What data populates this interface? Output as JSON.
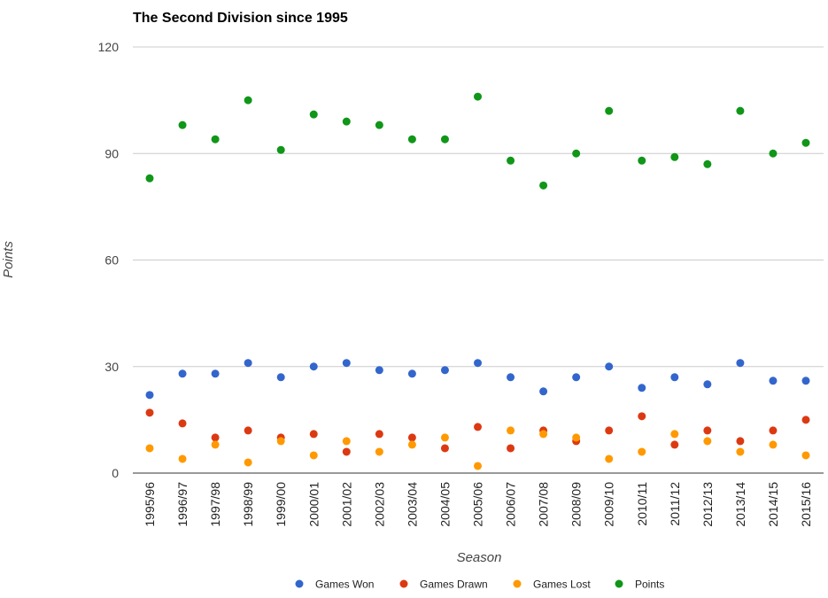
{
  "chart_data": {
    "type": "scatter",
    "title": "The Second Division since 1995",
    "xlabel": "Season",
    "ylabel": "Points",
    "ylim": [
      0,
      120
    ],
    "yticks": [
      0,
      30,
      60,
      90,
      120
    ],
    "grid": true,
    "legend_position": "bottom",
    "categories": [
      "1995/96",
      "1996/97",
      "1997/98",
      "1998/99",
      "1999/00",
      "2000/01",
      "2001/02",
      "2002/03",
      "2003/04",
      "2004/05",
      "2005/06",
      "2006/07",
      "2007/08",
      "2008/09",
      "2009/10",
      "2010/11",
      "2011/12",
      "2012/13",
      "2013/14",
      "2014/15",
      "2015/16"
    ],
    "series": [
      {
        "name": "Games Won",
        "color": "#3366cc",
        "values": [
          22,
          28,
          28,
          31,
          27,
          30,
          31,
          29,
          28,
          29,
          31,
          27,
          23,
          27,
          30,
          24,
          27,
          25,
          31,
          26,
          26
        ]
      },
      {
        "name": "Games Drawn",
        "color": "#dc3912",
        "values": [
          17,
          14,
          10,
          12,
          10,
          11,
          6,
          11,
          10,
          7,
          13,
          7,
          12,
          9,
          12,
          16,
          8,
          12,
          9,
          12,
          15
        ]
      },
      {
        "name": "Games Lost",
        "color": "#ff9900",
        "values": [
          7,
          4,
          8,
          3,
          9,
          5,
          9,
          6,
          8,
          10,
          2,
          12,
          11,
          10,
          4,
          6,
          11,
          9,
          6,
          8,
          5
        ]
      },
      {
        "name": "Points",
        "color": "#109618",
        "values": [
          83,
          98,
          94,
          105,
          91,
          101,
          99,
          98,
          94,
          94,
          106,
          88,
          81,
          90,
          102,
          88,
          89,
          87,
          102,
          90,
          93
        ]
      }
    ]
  }
}
